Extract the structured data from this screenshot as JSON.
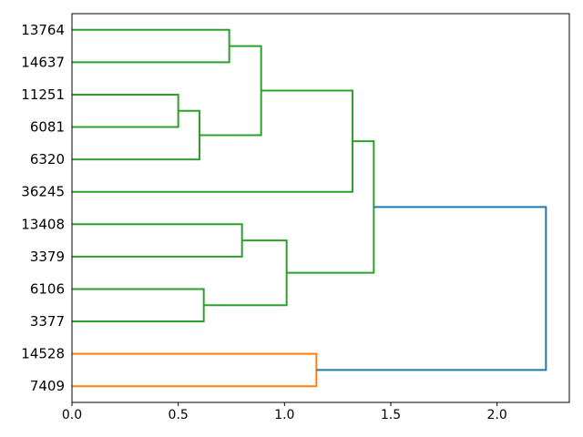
{
  "figure": {
    "background": "#ffffff"
  },
  "chart_data": {
    "type": "dendrogram",
    "orientation": "root-right",
    "title": "",
    "xlabel": "",
    "ylabel": "",
    "grid": false,
    "legend": null,
    "x_axis": {
      "ticks": [
        0.0,
        0.5,
        1.0,
        1.5,
        2.0
      ],
      "tick_labels": [
        "0.0",
        "0.5",
        "1.0",
        "1.5",
        "2.0"
      ],
      "range": [
        0,
        2.34
      ]
    },
    "leaf_labels": [
      "13764",
      "14637",
      "11251",
      "6081",
      "6320",
      "36245",
      "13408",
      "3379",
      "6106",
      "3377",
      "14528",
      "7409"
    ],
    "links": [
      {
        "id": "L1",
        "children": [
          "13764",
          "14637"
        ],
        "distance": 0.74,
        "color": "cluster_green"
      },
      {
        "id": "L2",
        "children": [
          "11251",
          "6081"
        ],
        "distance": 0.5,
        "color": "cluster_green"
      },
      {
        "id": "L3",
        "children": [
          "L2",
          "6320"
        ],
        "distance": 0.6,
        "color": "cluster_green"
      },
      {
        "id": "L4",
        "children": [
          "L1",
          "L3"
        ],
        "distance": 0.89,
        "color": "cluster_green"
      },
      {
        "id": "L5",
        "children": [
          "L4",
          "36245"
        ],
        "distance": 1.32,
        "color": "cluster_green"
      },
      {
        "id": "L6",
        "children": [
          "13408",
          "3379"
        ],
        "distance": 0.8,
        "color": "cluster_green"
      },
      {
        "id": "L7",
        "children": [
          "6106",
          "3377"
        ],
        "distance": 0.62,
        "color": "cluster_green"
      },
      {
        "id": "L8",
        "children": [
          "L6",
          "L7"
        ],
        "distance": 1.01,
        "color": "cluster_green"
      },
      {
        "id": "L9",
        "children": [
          "L5",
          "L8"
        ],
        "distance": 1.42,
        "color": "cluster_green"
      },
      {
        "id": "L10",
        "children": [
          "14528",
          "7409"
        ],
        "distance": 1.15,
        "color": "cluster_orange"
      },
      {
        "id": "L11",
        "children": [
          "L9",
          "L10"
        ],
        "distance": 2.23,
        "color": "root_blue"
      }
    ],
    "colors": {
      "cluster_green": "#2ca02c",
      "cluster_orange": "#ff7f0e",
      "root_blue": "#1f77b4",
      "axis": "#000000",
      "background": "#ffffff"
    }
  }
}
